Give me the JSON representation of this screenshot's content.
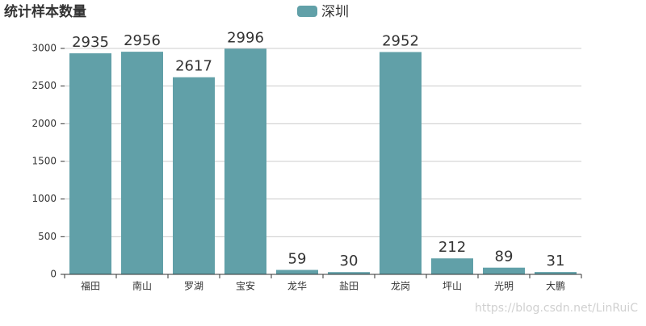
{
  "chart_data": {
    "type": "bar",
    "title": "统计样本数量",
    "categories": [
      "福田",
      "南山",
      "罗湖",
      "宝安",
      "龙华",
      "盐田",
      "龙岗",
      "坪山",
      "光明",
      "大鹏"
    ],
    "series": [
      {
        "name": "深圳",
        "color": "#61a0a8",
        "values": [
          2935,
          2956,
          2617,
          2996,
          59,
          30,
          2952,
          212,
          89,
          31
        ]
      }
    ],
    "ylim": [
      0,
      3000
    ],
    "yticks": [
      0,
      500,
      1000,
      1500,
      2000,
      2500,
      3000
    ],
    "grid": true,
    "legend": "top",
    "watermark": "https://blog.csdn.net/LinRuiC"
  }
}
